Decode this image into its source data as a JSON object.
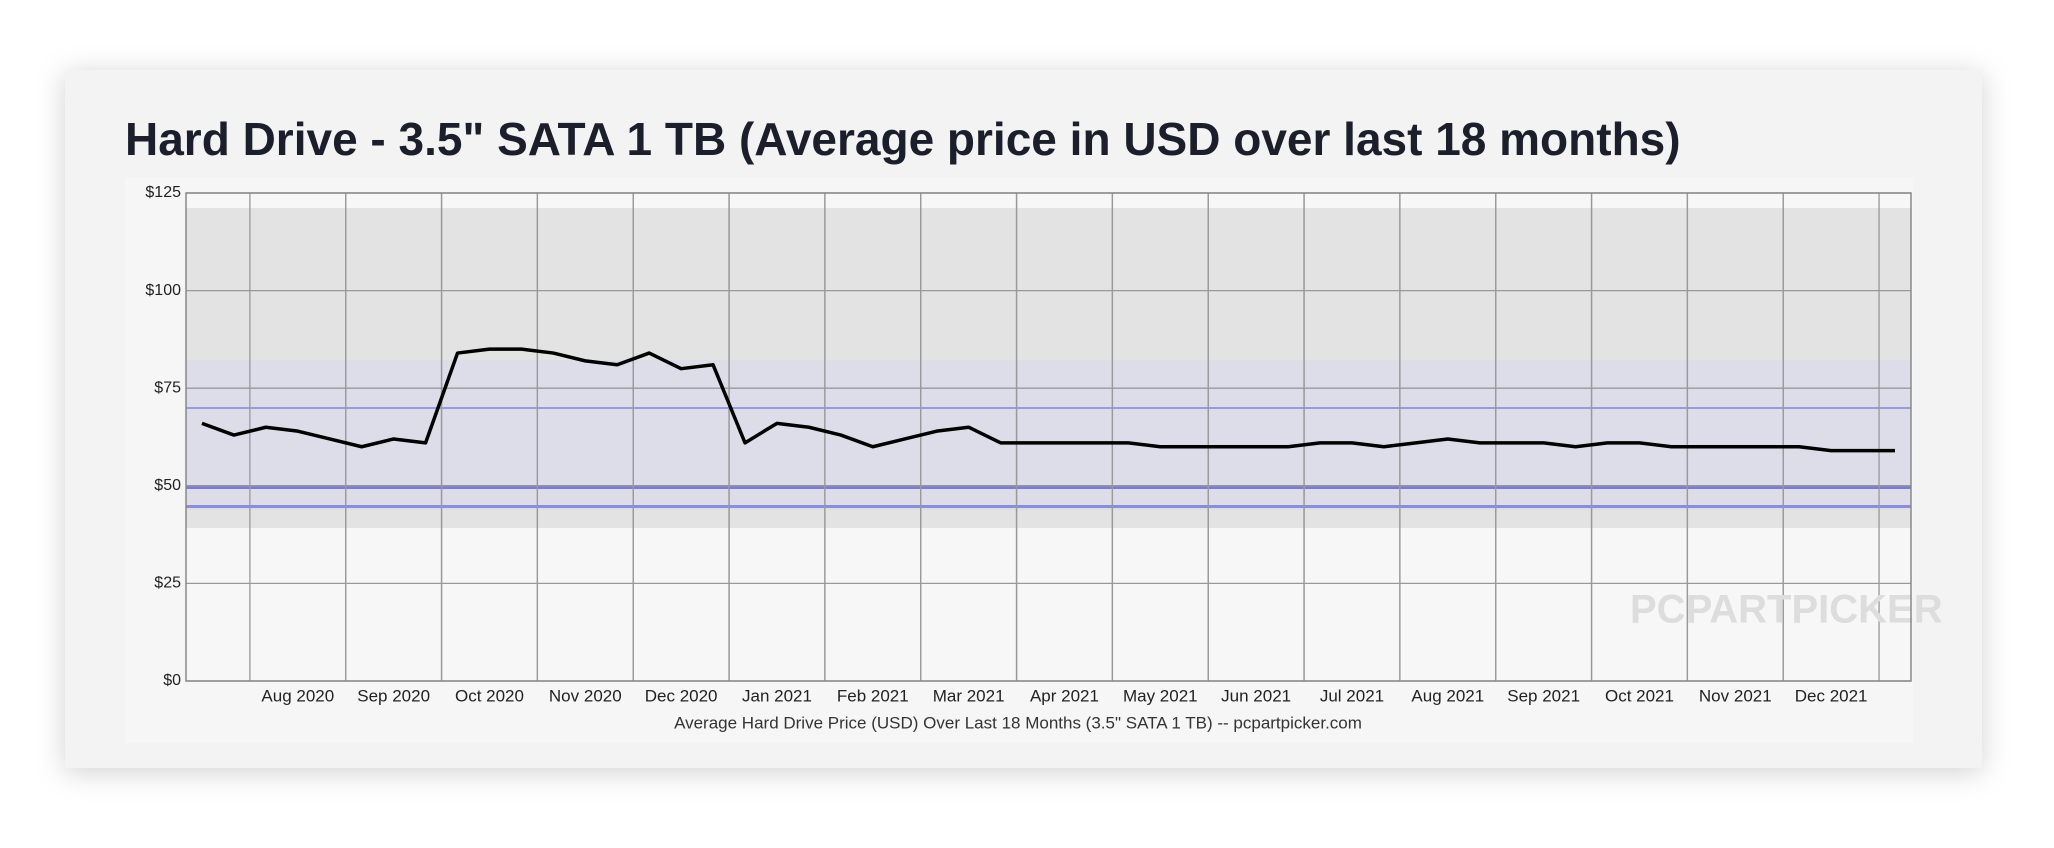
{
  "chart_data": {
    "type": "line",
    "title": "Hard Drive - 3.5\" SATA 1 TB (Average price in USD over last 18 months)",
    "x_label": "Average Hard Drive Price (USD) Over Last 18 Months (3.5\" SATA 1 TB) -- pcpartpicker.com",
    "watermark": "PCPARTPICKER",
    "categories": [
      null,
      null,
      null,
      "Aug 2020",
      null,
      null,
      "Sep 2020",
      null,
      null,
      "Oct 2020",
      null,
      null,
      "Nov 2020",
      null,
      null,
      "Dec 2020",
      null,
      null,
      "Jan 2021",
      null,
      null,
      "Feb 2021",
      null,
      null,
      "Mar 2021",
      null,
      null,
      "Apr 2021",
      null,
      null,
      "May 2021",
      null,
      null,
      "Jun 2021",
      null,
      null,
      "Jul 2021",
      null,
      null,
      "Aug 2021",
      null,
      null,
      "Sep 2021",
      null,
      null,
      "Oct 2021",
      null,
      null,
      "Nov 2021",
      null,
      null,
      "Dec 2021",
      null,
      null
    ],
    "values": [
      66,
      63,
      65,
      64,
      62,
      60,
      62,
      61,
      84,
      85,
      85,
      84,
      82,
      81,
      84,
      80,
      81,
      61,
      66,
      65,
      63,
      60,
      62,
      64,
      65,
      61,
      61,
      61,
      61,
      61,
      60,
      60,
      60,
      60,
      60,
      61,
      61,
      60,
      61,
      62,
      61,
      61,
      61,
      60,
      61,
      61,
      60,
      60,
      60,
      60,
      60,
      59,
      59,
      59
    ],
    "color": "#000000",
    "ylim": [
      0,
      125
    ],
    "yticks": [
      {
        "value": 0,
        "label": "$0"
      },
      {
        "value": 25,
        "label": "$25"
      },
      {
        "value": 50,
        "label": "$50"
      },
      {
        "value": 75,
        "label": "$75"
      },
      {
        "value": 100,
        "label": "$100"
      },
      {
        "value": 125,
        "label": "$125"
      }
    ],
    "grid": true
  }
}
